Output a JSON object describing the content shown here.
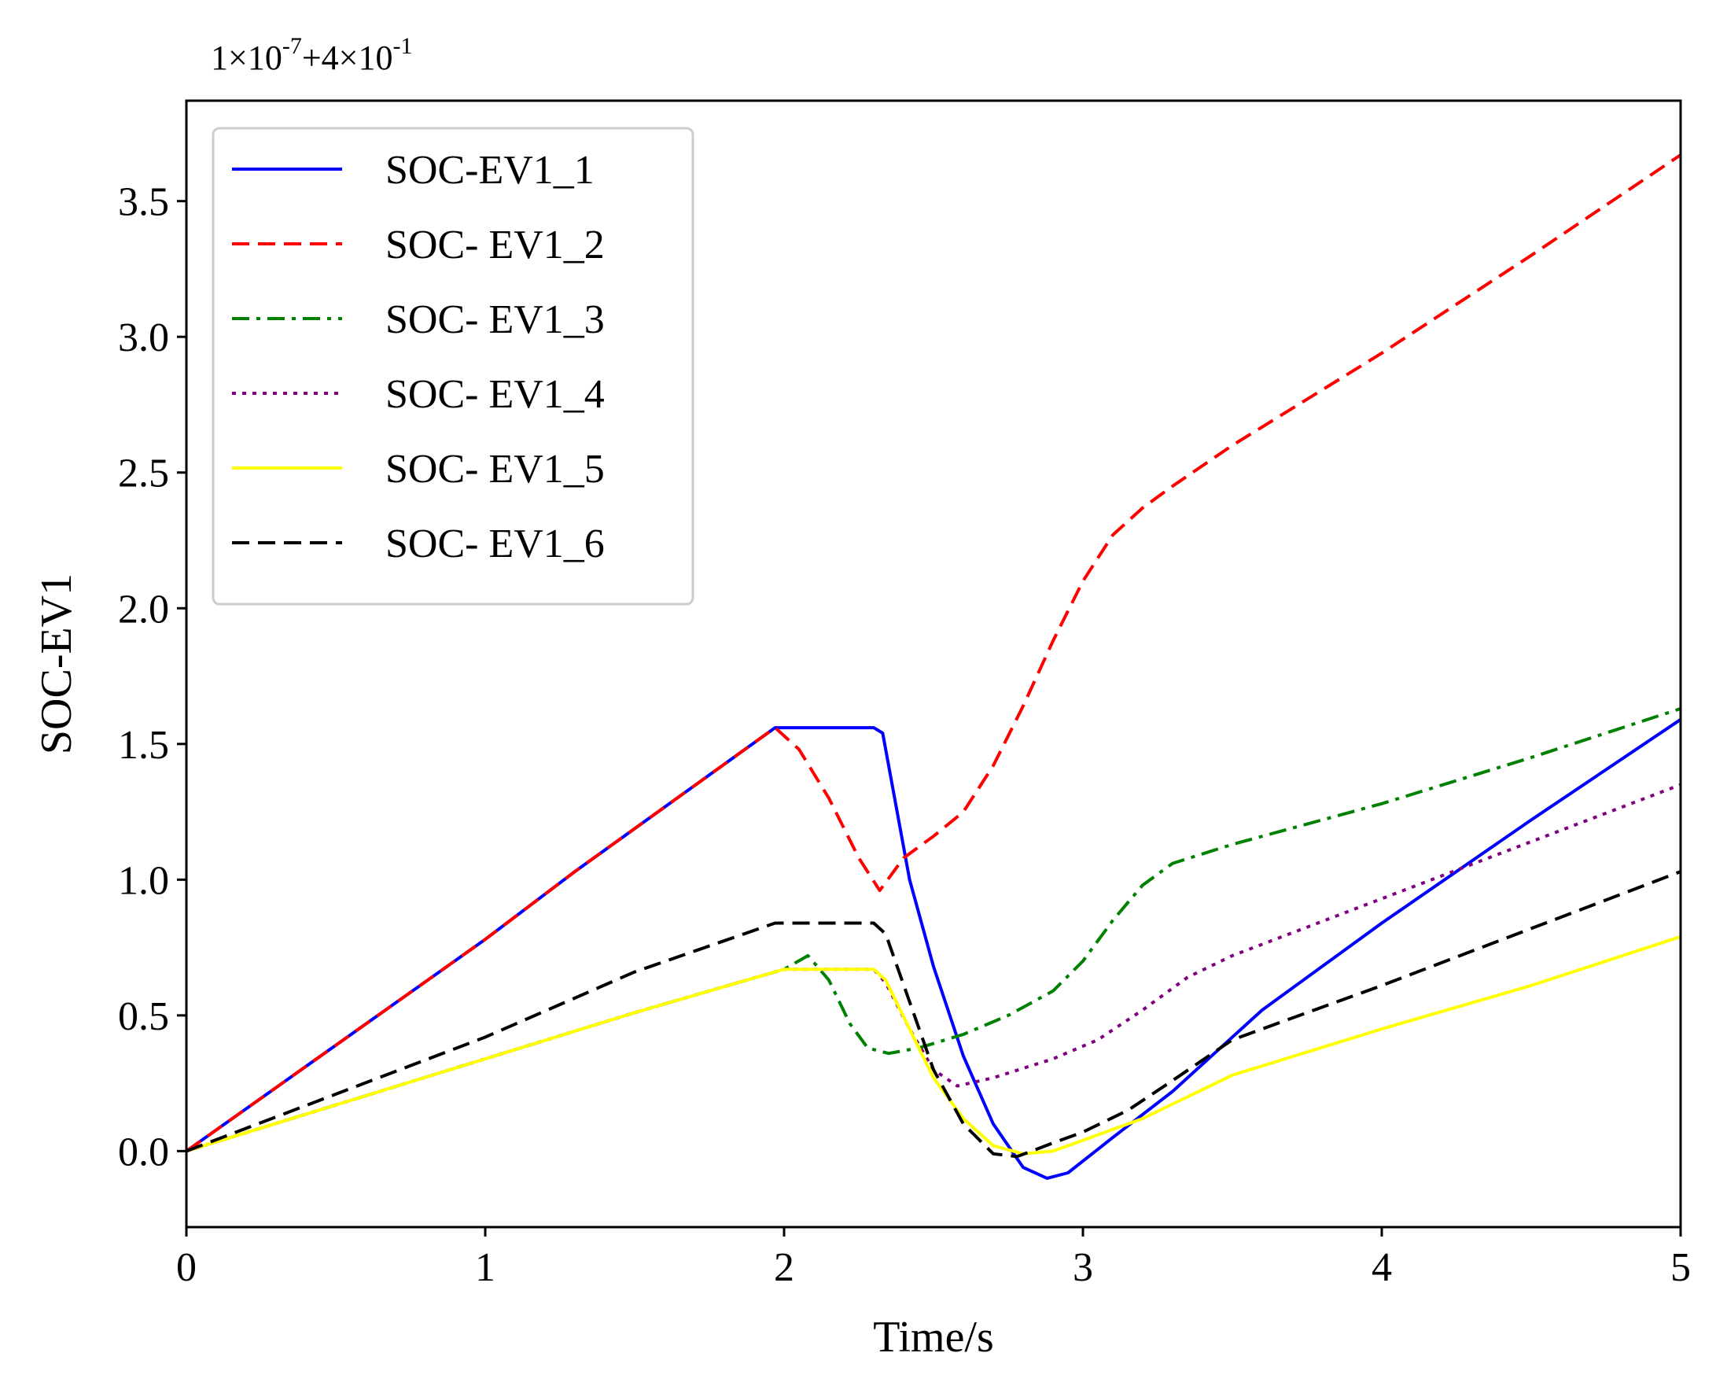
{
  "chart_data": {
    "type": "line",
    "title": "",
    "xlabel": "Time/s",
    "ylabel": "SOC-EV1",
    "offset_text": {
      "base": "1×10",
      "exp1": "-7",
      "mid": "+4×10",
      "exp2": "-1"
    },
    "xlim": [
      0,
      5
    ],
    "ylim": [
      -0.28,
      3.87
    ],
    "xticks": [
      0,
      1,
      2,
      3,
      4,
      5
    ],
    "xtick_labels": [
      "0",
      "1",
      "2",
      "3",
      "4",
      "5"
    ],
    "yticks": [
      0.0,
      0.5,
      1.0,
      1.5,
      2.0,
      2.5,
      3.0,
      3.5
    ],
    "ytick_labels": [
      "0.0",
      "0.5",
      "1.0",
      "1.5",
      "2.0",
      "2.5",
      "3.0",
      "3.5"
    ],
    "grid": false,
    "legend_position": "top-left",
    "series": [
      {
        "name": "SOC-EV1_1",
        "color": "#0000ff",
        "dash": "solid",
        "points": [
          [
            0,
            0
          ],
          [
            1,
            0.78
          ],
          [
            1.3,
            1.03
          ],
          [
            1.97,
            1.56
          ],
          [
            2.3,
            1.56
          ],
          [
            2.33,
            1.54
          ],
          [
            2.37,
            1.3
          ],
          [
            2.42,
            1.0
          ],
          [
            2.5,
            0.68
          ],
          [
            2.6,
            0.35
          ],
          [
            2.7,
            0.1
          ],
          [
            2.8,
            -0.06
          ],
          [
            2.88,
            -0.1
          ],
          [
            2.95,
            -0.08
          ],
          [
            3.1,
            0.05
          ],
          [
            3.3,
            0.22
          ],
          [
            3.45,
            0.37
          ],
          [
            3.6,
            0.52
          ],
          [
            4.0,
            0.84
          ],
          [
            4.5,
            1.22
          ],
          [
            5.0,
            1.59
          ]
        ]
      },
      {
        "name": "SOC- EV1_2",
        "color": "#ff0000",
        "dash": "dashed",
        "points": [
          [
            0,
            0
          ],
          [
            1,
            0.78
          ],
          [
            1.3,
            1.03
          ],
          [
            1.97,
            1.56
          ],
          [
            2.05,
            1.48
          ],
          [
            2.15,
            1.3
          ],
          [
            2.25,
            1.08
          ],
          [
            2.32,
            0.96
          ],
          [
            2.4,
            1.08
          ],
          [
            2.5,
            1.16
          ],
          [
            2.6,
            1.25
          ],
          [
            2.7,
            1.42
          ],
          [
            2.8,
            1.64
          ],
          [
            2.9,
            1.88
          ],
          [
            3.0,
            2.1
          ],
          [
            3.1,
            2.27
          ],
          [
            3.2,
            2.37
          ],
          [
            3.3,
            2.45
          ],
          [
            3.5,
            2.6
          ],
          [
            4.0,
            2.94
          ],
          [
            4.5,
            3.3
          ],
          [
            5.0,
            3.67
          ]
        ]
      },
      {
        "name": "SOC- EV1_3",
        "color": "#008000",
        "dash": "dashdot",
        "points": [
          [
            0,
            0
          ],
          [
            1,
            0.34
          ],
          [
            1.5,
            0.51
          ],
          [
            2.0,
            0.67
          ],
          [
            2.08,
            0.72
          ],
          [
            2.15,
            0.63
          ],
          [
            2.22,
            0.47
          ],
          [
            2.28,
            0.38
          ],
          [
            2.35,
            0.36
          ],
          [
            2.45,
            0.38
          ],
          [
            2.6,
            0.43
          ],
          [
            2.75,
            0.5
          ],
          [
            2.9,
            0.59
          ],
          [
            3.0,
            0.7
          ],
          [
            3.1,
            0.85
          ],
          [
            3.2,
            0.98
          ],
          [
            3.3,
            1.06
          ],
          [
            3.5,
            1.13
          ],
          [
            4.0,
            1.28
          ],
          [
            4.5,
            1.45
          ],
          [
            5.0,
            1.63
          ]
        ]
      },
      {
        "name": "SOC- EV1_4",
        "color": "#800080",
        "dash": "dotted",
        "points": [
          [
            0,
            0
          ],
          [
            1,
            0.34
          ],
          [
            1.5,
            0.51
          ],
          [
            2.0,
            0.67
          ],
          [
            2.3,
            0.67
          ],
          [
            2.34,
            0.62
          ],
          [
            2.42,
            0.45
          ],
          [
            2.5,
            0.3
          ],
          [
            2.58,
            0.24
          ],
          [
            2.7,
            0.27
          ],
          [
            2.9,
            0.34
          ],
          [
            3.05,
            0.41
          ],
          [
            3.2,
            0.52
          ],
          [
            3.35,
            0.64
          ],
          [
            3.5,
            0.72
          ],
          [
            4.0,
            0.93
          ],
          [
            4.5,
            1.14
          ],
          [
            5.0,
            1.35
          ]
        ]
      },
      {
        "name": "SOC- EV1_5",
        "color": "#ffff00",
        "dash": "solid",
        "points": [
          [
            0,
            0
          ],
          [
            1,
            0.34
          ],
          [
            1.5,
            0.51
          ],
          [
            2.0,
            0.67
          ],
          [
            2.3,
            0.67
          ],
          [
            2.34,
            0.63
          ],
          [
            2.42,
            0.45
          ],
          [
            2.5,
            0.27
          ],
          [
            2.6,
            0.12
          ],
          [
            2.7,
            0.02
          ],
          [
            2.8,
            -0.01
          ],
          [
            2.9,
            0.0
          ],
          [
            3.0,
            0.04
          ],
          [
            3.2,
            0.12
          ],
          [
            3.5,
            0.28
          ],
          [
            4.0,
            0.45
          ],
          [
            4.5,
            0.61
          ],
          [
            5.0,
            0.79
          ]
        ]
      },
      {
        "name": "SOC- EV1_6",
        "color": "#000000",
        "dash": "dashed",
        "points": [
          [
            0,
            0
          ],
          [
            1,
            0.42
          ],
          [
            1.5,
            0.66
          ],
          [
            1.97,
            0.84
          ],
          [
            2.3,
            0.84
          ],
          [
            2.34,
            0.8
          ],
          [
            2.42,
            0.55
          ],
          [
            2.5,
            0.3
          ],
          [
            2.6,
            0.1
          ],
          [
            2.7,
            -0.01
          ],
          [
            2.78,
            -0.02
          ],
          [
            2.9,
            0.03
          ],
          [
            3.0,
            0.07
          ],
          [
            3.15,
            0.15
          ],
          [
            3.3,
            0.26
          ],
          [
            3.5,
            0.41
          ],
          [
            4.0,
            0.61
          ],
          [
            4.5,
            0.82
          ],
          [
            5.0,
            1.03
          ]
        ]
      }
    ]
  }
}
